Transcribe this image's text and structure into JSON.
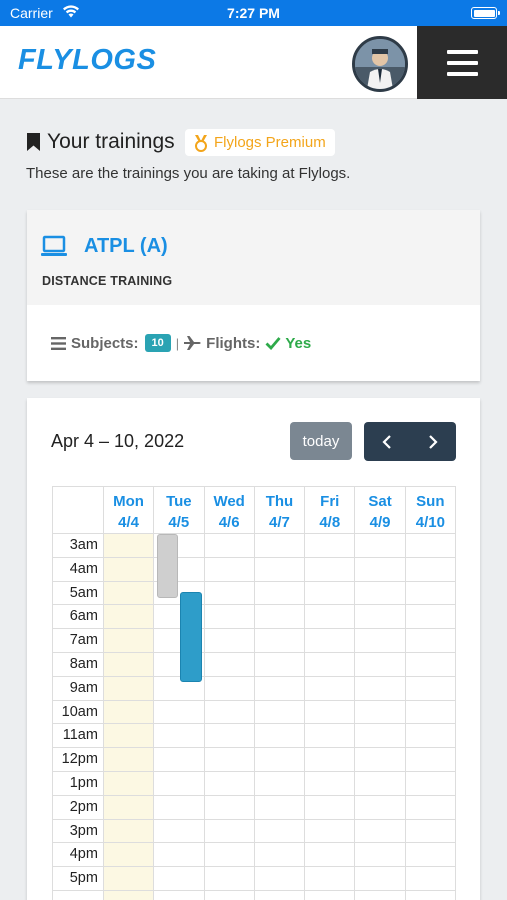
{
  "statusbar": {
    "carrier": "Carrier",
    "time": "7:27 PM"
  },
  "header": {
    "logo_text": "FLYLOGS",
    "avatar_label": "user avatar",
    "menu_icon": "hamburger-menu-icon"
  },
  "page": {
    "title": "Your trainings",
    "premium_badge": "Flylogs Premium",
    "subtitle": "These are the trainings you are taking at Flylogs."
  },
  "training": {
    "name": "ATPL (A)",
    "type": "DISTANCE TRAINING",
    "subjects_label": "Subjects:",
    "subjects_count": "10",
    "separator": "|",
    "flights_label": "Flights:",
    "flights_value": "Yes"
  },
  "calendar": {
    "title": "Apr 4 – 10, 2022",
    "today_label": "today",
    "days": [
      {
        "name": "Mon",
        "date": "4/4"
      },
      {
        "name": "Tue",
        "date": "4/5"
      },
      {
        "name": "Wed",
        "date": "4/6"
      },
      {
        "name": "Thu",
        "date": "4/7"
      },
      {
        "name": "Fri",
        "date": "4/8"
      },
      {
        "name": "Sat",
        "date": "4/9"
      },
      {
        "name": "Sun",
        "date": "4/10"
      }
    ],
    "hours": [
      "3am",
      "4am",
      "5am",
      "6am",
      "7am",
      "8am",
      "9am",
      "10am",
      "11am",
      "12pm",
      "1pm",
      "2pm",
      "3pm",
      "4pm",
      "5pm",
      ""
    ],
    "colors": {
      "event_gray": "#cfcfcf",
      "event_blue": "#2e9dc9",
      "today_bg": "#fcf8e3",
      "accent": "#1a8fe3"
    }
  }
}
